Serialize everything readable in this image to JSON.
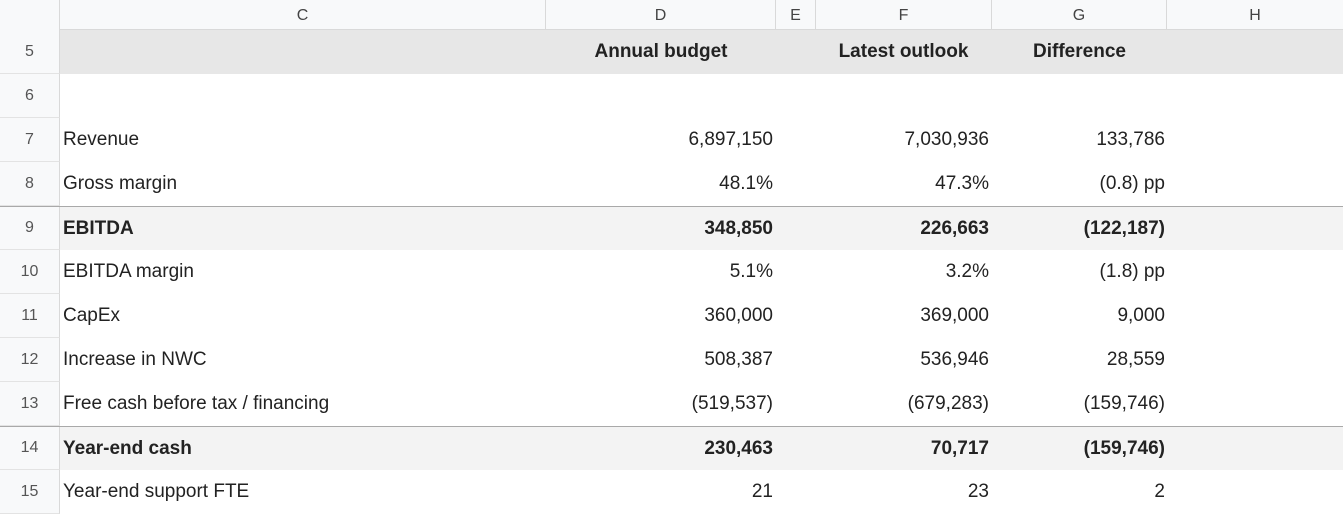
{
  "columns": {
    "c": "C",
    "d": "D",
    "e": "E",
    "f": "F",
    "g": "G",
    "h": "H"
  },
  "header": {
    "row_number": "5",
    "annual_budget": "Annual budget",
    "latest_outlook": "Latest outlook",
    "difference": "Difference"
  },
  "blank_row": {
    "row_number": "6"
  },
  "rows": [
    {
      "row_number": "7",
      "label": "Revenue",
      "budget": "6,897,150",
      "outlook": "7,030,936",
      "difference": "133,786"
    },
    {
      "row_number": "8",
      "label": "Gross margin",
      "budget": "48.1%",
      "outlook": "47.3%",
      "difference": "(0.8) pp"
    },
    {
      "row_number": "9",
      "label": "EBITDA",
      "budget": "348,850",
      "outlook": "226,663",
      "difference": "(122,187)"
    },
    {
      "row_number": "10",
      "label": "EBITDA margin",
      "budget": "5.1%",
      "outlook": "3.2%",
      "difference": "(1.8) pp"
    },
    {
      "row_number": "11",
      "label": "CapEx",
      "budget": "360,000",
      "outlook": "369,000",
      "difference": "9,000"
    },
    {
      "row_number": "12",
      "label": "Increase in NWC",
      "budget": "508,387",
      "outlook": "536,946",
      "difference": "28,559"
    },
    {
      "row_number": "13",
      "label": "Free cash before tax / financing",
      "budget": "(519,537)",
      "outlook": "(679,283)",
      "difference": "(159,746)"
    },
    {
      "row_number": "14",
      "label": "Year-end cash",
      "budget": "230,463",
      "outlook": "70,717",
      "difference": "(159,746)"
    },
    {
      "row_number": "15",
      "label": "Year-end support FTE",
      "budget": "21",
      "outlook": "23",
      "difference": "2"
    }
  ]
}
